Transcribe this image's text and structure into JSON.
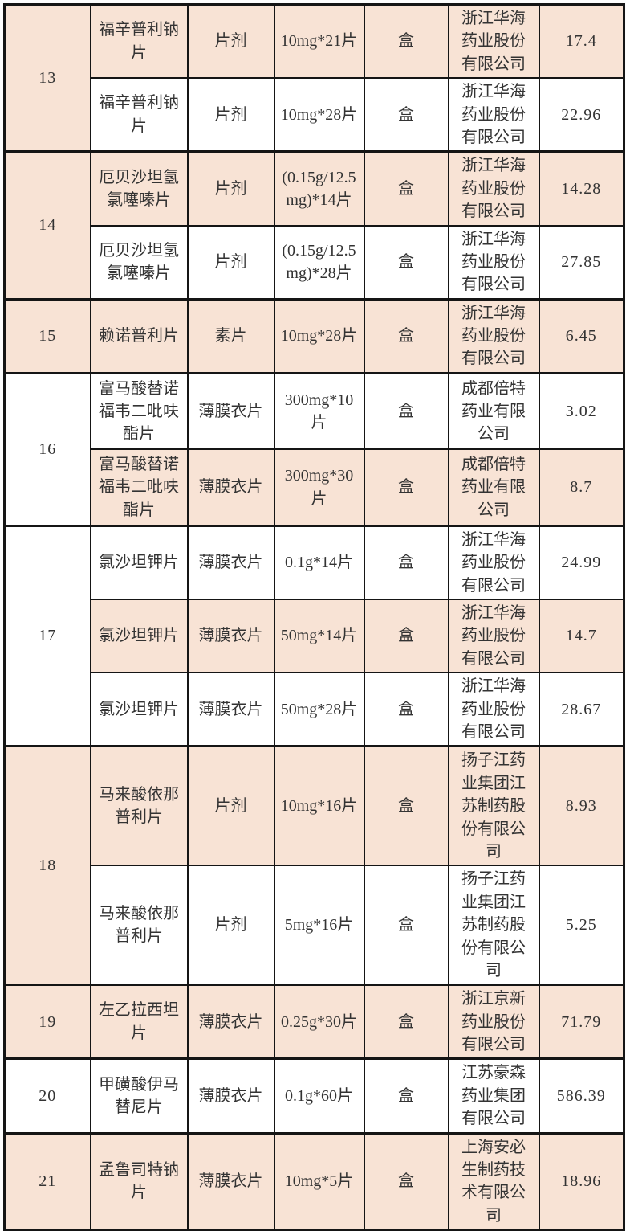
{
  "colors": {
    "row_shade_peach": "#f8e3d5",
    "row_shade_white": "#ffffff",
    "border_black": "#151515",
    "text": "#333333",
    "page_background": "#fdfdfd"
  },
  "table": {
    "description_note": "drug price list rows 13-21, columns: number, drug name, dosage form, specification, unit, manufacturer, price",
    "groups": [
      {
        "no": "13",
        "rows": [
          {
            "name": "福辛普利钠片",
            "form": "片剂",
            "spec": "10mg*21片",
            "unit": "盒",
            "manufacturer": "浙江华海药业股份有限公司",
            "price": "17.4",
            "shade": "peach"
          },
          {
            "name": "福辛普利钠片",
            "form": "片剂",
            "spec": "10mg*28片",
            "unit": "盒",
            "manufacturer": "浙江华海药业股份有限公司",
            "price": "22.96",
            "shade": "white"
          }
        ]
      },
      {
        "no": "14",
        "rows": [
          {
            "name": "厄贝沙坦氢氯噻嗪片",
            "form": "片剂",
            "spec": "(0.15g/12.5mg)*14片",
            "unit": "盒",
            "manufacturer": "浙江华海药业股份有限公司",
            "price": "14.28",
            "shade": "peach"
          },
          {
            "name": "厄贝沙坦氢氯噻嗪片",
            "form": "片剂",
            "spec": "(0.15g/12.5mg)*28片",
            "unit": "盒",
            "manufacturer": "浙江华海药业股份有限公司",
            "price": "27.85",
            "shade": "white"
          }
        ]
      },
      {
        "no": "15",
        "rows": [
          {
            "name": "赖诺普利片",
            "form": "素片",
            "spec": "10mg*28片",
            "unit": "盒",
            "manufacturer": "浙江华海药业股份有限公司",
            "price": "6.45",
            "shade": "peach"
          }
        ]
      },
      {
        "no": "16",
        "rows": [
          {
            "name": "富马酸替诺福韦二吡呋酯片",
            "form": "薄膜衣片",
            "spec": "300mg*10片",
            "unit": "盒",
            "manufacturer": "成都倍特药业有限公司",
            "price": "3.02",
            "shade": "white"
          },
          {
            "name": "富马酸替诺福韦二吡呋酯片",
            "form": "薄膜衣片",
            "spec": "300mg*30片",
            "unit": "盒",
            "manufacturer": "成都倍特药业有限公司",
            "price": "8.7",
            "shade": "peach"
          }
        ]
      },
      {
        "no": "17",
        "rows": [
          {
            "name": "氯沙坦钾片",
            "form": "薄膜衣片",
            "spec": "0.1g*14片",
            "unit": "盒",
            "manufacturer": "浙江华海药业股份有限公司",
            "price": "24.99",
            "shade": "white"
          },
          {
            "name": "氯沙坦钾片",
            "form": "薄膜衣片",
            "spec": "50mg*14片",
            "unit": "盒",
            "manufacturer": "浙江华海药业股份有限公司",
            "price": "14.7",
            "shade": "peach"
          },
          {
            "name": "氯沙坦钾片",
            "form": "薄膜衣片",
            "spec": "50mg*28片",
            "unit": "盒",
            "manufacturer": "浙江华海药业股份有限公司",
            "price": "28.67",
            "shade": "white"
          }
        ]
      },
      {
        "no": "18",
        "rows": [
          {
            "name": "马来酸依那普利片",
            "form": "片剂",
            "spec": "10mg*16片",
            "unit": "盒",
            "manufacturer": "扬子江药业集团江苏制药股份有限公司",
            "price": "8.93",
            "shade": "peach"
          },
          {
            "name": "马来酸依那普利片",
            "form": "片剂",
            "spec": "5mg*16片",
            "unit": "盒",
            "manufacturer": "扬子江药业集团江苏制药股份有限公司",
            "price": "5.25",
            "shade": "white"
          }
        ]
      },
      {
        "no": "19",
        "rows": [
          {
            "name": "左乙拉西坦片",
            "form": "薄膜衣片",
            "spec": "0.25g*30片",
            "unit": "盒",
            "manufacturer": "浙江京新药业股份有限公司",
            "price": "71.79",
            "shade": "peach"
          }
        ]
      },
      {
        "no": "20",
        "rows": [
          {
            "name": "甲磺酸伊马替尼片",
            "form": "薄膜衣片",
            "spec": "0.1g*60片",
            "unit": "盒",
            "manufacturer": "江苏豪森药业集团有限公司",
            "price": "586.39",
            "shade": "white"
          }
        ]
      },
      {
        "no": "21",
        "rows": [
          {
            "name": "孟鲁司特钠片",
            "form": "薄膜衣片",
            "spec": "10mg*5片",
            "unit": "盒",
            "manufacturer": "上海安必生制药技术有限公司",
            "price": "18.96",
            "shade": "peach"
          }
        ]
      }
    ]
  }
}
